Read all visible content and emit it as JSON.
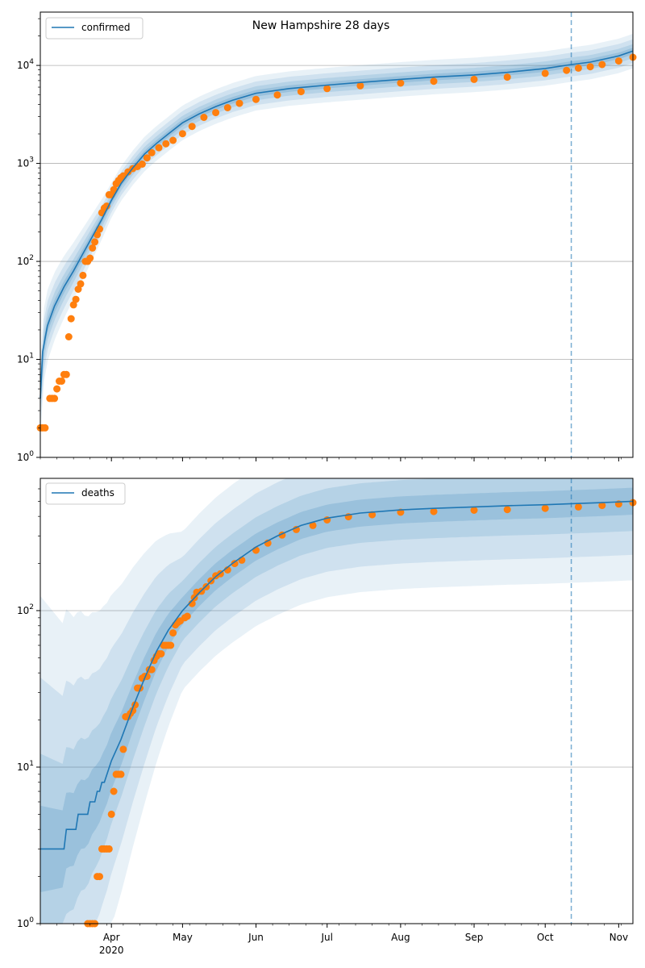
{
  "figure": {
    "title": "New Hampshire 28 days"
  },
  "colors": {
    "model": "#1f77b4",
    "observed": "#ff7f0e",
    "band": "#1f77b4",
    "grid": "#b0b0b0"
  },
  "chart_data": [
    {
      "type": "line",
      "panel": "top",
      "title": "New Hampshire 28 days",
      "yscale": "log",
      "ylim": [
        1,
        35000
      ],
      "xlim": [
        "2020-03-02",
        "2020-11-07"
      ],
      "y_ticks": [
        {
          "value": 1,
          "base": "10",
          "exp": "0"
        },
        {
          "value": 10,
          "base": "10",
          "exp": "1"
        },
        {
          "value": 100,
          "base": "10",
          "exp": "2"
        },
        {
          "value": 1000,
          "base": "10",
          "exp": "3"
        },
        {
          "value": 10000,
          "base": "10",
          "exp": "4"
        }
      ],
      "grid": "horizontal",
      "legend": {
        "position": "upper-left",
        "entries": [
          {
            "label": "confirmed"
          }
        ]
      },
      "forecast_start": "2020-10-12",
      "series": [
        {
          "name": "confirmed",
          "kind": "model-line",
          "points": [
            [
              "2020-03-02",
              4
            ],
            [
              "2020-03-03",
              12
            ],
            [
              "2020-03-05",
              22
            ],
            [
              "2020-03-08",
              35
            ],
            [
              "2020-03-12",
              55
            ],
            [
              "2020-03-16",
              80
            ],
            [
              "2020-03-20",
              120
            ],
            [
              "2020-03-24",
              180
            ],
            [
              "2020-03-28",
              270
            ],
            [
              "2020-04-01",
              420
            ],
            [
              "2020-04-05",
              620
            ],
            [
              "2020-04-10",
              900
            ],
            [
              "2020-04-15",
              1250
            ],
            [
              "2020-04-20",
              1600
            ],
            [
              "2020-04-25",
              2000
            ],
            [
              "2020-05-01",
              2600
            ],
            [
              "2020-05-08",
              3200
            ],
            [
              "2020-05-15",
              3800
            ],
            [
              "2020-05-22",
              4400
            ],
            [
              "2020-06-01",
              5200
            ],
            [
              "2020-06-15",
              5800
            ],
            [
              "2020-07-01",
              6300
            ],
            [
              "2020-07-15",
              6700
            ],
            [
              "2020-08-01",
              7200
            ],
            [
              "2020-08-15",
              7600
            ],
            [
              "2020-09-01",
              8000
            ],
            [
              "2020-09-15",
              8500
            ],
            [
              "2020-10-01",
              9300
            ],
            [
              "2020-10-12",
              10200
            ],
            [
              "2020-10-20",
              10800
            ],
            [
              "2020-11-01",
              12500
            ],
            [
              "2020-11-07",
              14000
            ]
          ]
        },
        {
          "name": "",
          "kind": "observed-points",
          "points": [
            [
              "2020-03-02",
              2
            ],
            [
              "2020-03-03",
              2
            ],
            [
              "2020-03-04",
              2
            ],
            [
              "2020-03-06",
              4
            ],
            [
              "2020-03-07",
              4
            ],
            [
              "2020-03-08",
              4
            ],
            [
              "2020-03-09",
              5
            ],
            [
              "2020-03-10",
              6
            ],
            [
              "2020-03-11",
              6
            ],
            [
              "2020-03-12",
              7
            ],
            [
              "2020-03-13",
              7
            ],
            [
              "2020-03-14",
              17
            ],
            [
              "2020-03-15",
              26
            ],
            [
              "2020-03-16",
              36
            ],
            [
              "2020-03-17",
              41
            ],
            [
              "2020-03-18",
              52
            ],
            [
              "2020-03-19",
              59
            ],
            [
              "2020-03-20",
              72
            ],
            [
              "2020-03-21",
              100
            ],
            [
              "2020-03-22",
              100
            ],
            [
              "2020-03-23",
              108
            ],
            [
              "2020-03-24",
              137
            ],
            [
              "2020-03-25",
              158
            ],
            [
              "2020-03-26",
              187
            ],
            [
              "2020-03-27",
              214
            ],
            [
              "2020-03-28",
              314
            ],
            [
              "2020-03-29",
              350
            ],
            [
              "2020-03-30",
              367
            ],
            [
              "2020-03-31",
              479
            ],
            [
              "2020-04-01",
              479
            ],
            [
              "2020-04-02",
              540
            ],
            [
              "2020-04-03",
              621
            ],
            [
              "2020-04-04",
              669
            ],
            [
              "2020-04-05",
              715
            ],
            [
              "2020-04-06",
              747
            ],
            [
              "2020-04-08",
              819
            ],
            [
              "2020-04-10",
              885
            ],
            [
              "2020-04-12",
              929
            ],
            [
              "2020-04-14",
              985
            ],
            [
              "2020-04-16",
              1139
            ],
            [
              "2020-04-18",
              1287
            ],
            [
              "2020-04-21",
              1447
            ],
            [
              "2020-04-24",
              1588
            ],
            [
              "2020-04-27",
              1720
            ],
            [
              "2020-05-01",
              2010
            ],
            [
              "2020-05-05",
              2386
            ],
            [
              "2020-05-10",
              2950
            ],
            [
              "2020-05-15",
              3300
            ],
            [
              "2020-05-20",
              3700
            ],
            [
              "2020-05-25",
              4100
            ],
            [
              "2020-06-01",
              4500
            ],
            [
              "2020-06-10",
              5000
            ],
            [
              "2020-06-20",
              5400
            ],
            [
              "2020-07-01",
              5800
            ],
            [
              "2020-07-15",
              6200
            ],
            [
              "2020-08-01",
              6600
            ],
            [
              "2020-08-15",
              6900
            ],
            [
              "2020-09-01",
              7200
            ],
            [
              "2020-09-15",
              7600
            ],
            [
              "2020-10-01",
              8300
            ],
            [
              "2020-10-10",
              8900
            ],
            [
              "2020-10-15",
              9400
            ],
            [
              "2020-10-20",
              9700
            ],
            [
              "2020-10-25",
              10200
            ],
            [
              "2020-11-01",
              11100
            ],
            [
              "2020-11-07",
              12100
            ]
          ]
        }
      ]
    },
    {
      "type": "line",
      "panel": "bottom",
      "yscale": "log",
      "ylim": [
        1,
        700
      ],
      "xlim": [
        "2020-03-02",
        "2020-11-07"
      ],
      "y_ticks": [
        {
          "value": 1,
          "base": "10",
          "exp": "0"
        },
        {
          "value": 10,
          "base": "10",
          "exp": "1"
        },
        {
          "value": 100,
          "base": "10",
          "exp": "2"
        }
      ],
      "x_ticks": [
        {
          "date": "2020-04-01",
          "label": "Apr",
          "sub": "2020"
        },
        {
          "date": "2020-05-01",
          "label": "May",
          "sub": ""
        },
        {
          "date": "2020-06-01",
          "label": "Jun",
          "sub": ""
        },
        {
          "date": "2020-07-01",
          "label": "Jul",
          "sub": ""
        },
        {
          "date": "2020-08-01",
          "label": "Aug",
          "sub": ""
        },
        {
          "date": "2020-09-01",
          "label": "Sep",
          "sub": ""
        },
        {
          "date": "2020-10-01",
          "label": "Oct",
          "sub": ""
        },
        {
          "date": "2020-11-01",
          "label": "Nov",
          "sub": ""
        }
      ],
      "grid": "horizontal",
      "legend": {
        "position": "upper-left",
        "entries": [
          {
            "label": "deaths"
          }
        ]
      },
      "forecast_start": "2020-10-12",
      "series": [
        {
          "name": "deaths",
          "kind": "model-line",
          "points": [
            [
              "2020-03-02",
              3
            ],
            [
              "2020-03-12",
              3
            ],
            [
              "2020-03-13",
              4
            ],
            [
              "2020-03-17",
              4
            ],
            [
              "2020-03-18",
              5
            ],
            [
              "2020-03-22",
              5
            ],
            [
              "2020-03-23",
              6
            ],
            [
              "2020-03-25",
              6
            ],
            [
              "2020-03-26",
              7
            ],
            [
              "2020-03-27",
              7
            ],
            [
              "2020-03-28",
              8
            ],
            [
              "2020-03-29",
              8
            ],
            [
              "2020-04-01",
              11
            ],
            [
              "2020-04-05",
              15
            ],
            [
              "2020-04-10",
              24
            ],
            [
              "2020-04-15",
              37
            ],
            [
              "2020-04-20",
              55
            ],
            [
              "2020-04-25",
              75
            ],
            [
              "2020-05-01",
              100
            ],
            [
              "2020-05-08",
              130
            ],
            [
              "2020-05-15",
              165
            ],
            [
              "2020-05-22",
              200
            ],
            [
              "2020-06-01",
              255
            ],
            [
              "2020-06-10",
              300
            ],
            [
              "2020-06-20",
              350
            ],
            [
              "2020-07-01",
              390
            ],
            [
              "2020-07-15",
              420
            ],
            [
              "2020-08-01",
              440
            ],
            [
              "2020-08-15",
              450
            ],
            [
              "2020-09-01",
              460
            ],
            [
              "2020-09-15",
              468
            ],
            [
              "2020-10-01",
              475
            ],
            [
              "2020-10-12",
              482
            ],
            [
              "2020-10-25",
              490
            ],
            [
              "2020-11-07",
              500
            ]
          ]
        },
        {
          "name": "",
          "kind": "observed-points",
          "points": [
            [
              "2020-03-22",
              1
            ],
            [
              "2020-03-23",
              1
            ],
            [
              "2020-03-24",
              1
            ],
            [
              "2020-03-25",
              1
            ],
            [
              "2020-03-26",
              2
            ],
            [
              "2020-03-27",
              2
            ],
            [
              "2020-03-28",
              3
            ],
            [
              "2020-03-29",
              3
            ],
            [
              "2020-03-30",
              3
            ],
            [
              "2020-03-31",
              3
            ],
            [
              "2020-04-01",
              5
            ],
            [
              "2020-04-02",
              7
            ],
            [
              "2020-04-03",
              9
            ],
            [
              "2020-04-04",
              9
            ],
            [
              "2020-04-05",
              9
            ],
            [
              "2020-04-06",
              13
            ],
            [
              "2020-04-07",
              21
            ],
            [
              "2020-04-08",
              21
            ],
            [
              "2020-04-09",
              22
            ],
            [
              "2020-04-10",
              23
            ],
            [
              "2020-04-11",
              25
            ],
            [
              "2020-04-12",
              32
            ],
            [
              "2020-04-13",
              32
            ],
            [
              "2020-04-14",
              37
            ],
            [
              "2020-04-15",
              38
            ],
            [
              "2020-04-16",
              38
            ],
            [
              "2020-04-17",
              42
            ],
            [
              "2020-04-18",
              42
            ],
            [
              "2020-04-19",
              48
            ],
            [
              "2020-04-20",
              51
            ],
            [
              "2020-04-21",
              53
            ],
            [
              "2020-04-22",
              53
            ],
            [
              "2020-04-23",
              60
            ],
            [
              "2020-04-24",
              60
            ],
            [
              "2020-04-25",
              60
            ],
            [
              "2020-04-26",
              60
            ],
            [
              "2020-04-27",
              72
            ],
            [
              "2020-04-28",
              81
            ],
            [
              "2020-04-29",
              84
            ],
            [
              "2020-04-30",
              86
            ],
            [
              "2020-05-02",
              90
            ],
            [
              "2020-05-03",
              92
            ],
            [
              "2020-05-05",
              111
            ],
            [
              "2020-05-06",
              121
            ],
            [
              "2020-05-07",
              131
            ],
            [
              "2020-05-09",
              133
            ],
            [
              "2020-05-11",
              142
            ],
            [
              "2020-05-13",
              155
            ],
            [
              "2020-05-15",
              167
            ],
            [
              "2020-05-17",
              172
            ],
            [
              "2020-05-20",
              182
            ],
            [
              "2020-05-23",
              200
            ],
            [
              "2020-05-26",
              210
            ],
            [
              "2020-06-01",
              243
            ],
            [
              "2020-06-06",
              270
            ],
            [
              "2020-06-12",
              304
            ],
            [
              "2020-06-18",
              330
            ],
            [
              "2020-06-25",
              350
            ],
            [
              "2020-07-01",
              380
            ],
            [
              "2020-07-10",
              398
            ],
            [
              "2020-07-20",
              410
            ],
            [
              "2020-08-01",
              425
            ],
            [
              "2020-08-15",
              430
            ],
            [
              "2020-09-01",
              438
            ],
            [
              "2020-09-15",
              442
            ],
            [
              "2020-10-01",
              450
            ],
            [
              "2020-10-15",
              460
            ],
            [
              "2020-10-25",
              470
            ],
            [
              "2020-11-01",
              480
            ],
            [
              "2020-11-07",
              490
            ]
          ]
        }
      ]
    }
  ]
}
